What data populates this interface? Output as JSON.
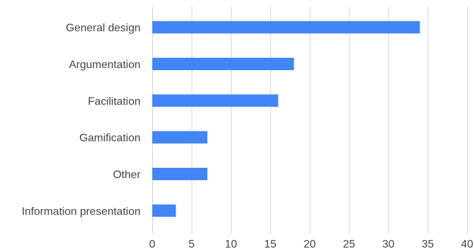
{
  "chart_data": {
    "type": "bar",
    "orientation": "horizontal",
    "title": "",
    "xlabel": "",
    "ylabel": "",
    "categories": [
      "General design",
      "Argumentation",
      "Facilitation",
      "Gamification",
      "Other",
      "Information presentation"
    ],
    "values": [
      34,
      18,
      16,
      7,
      7,
      3
    ],
    "xlim": [
      0,
      40
    ],
    "xticks": [
      "0",
      "5",
      "10",
      "15",
      "20",
      "25",
      "30",
      "35",
      "40"
    ],
    "grid": true,
    "legend": "none",
    "bar_color": "#4285f4"
  }
}
